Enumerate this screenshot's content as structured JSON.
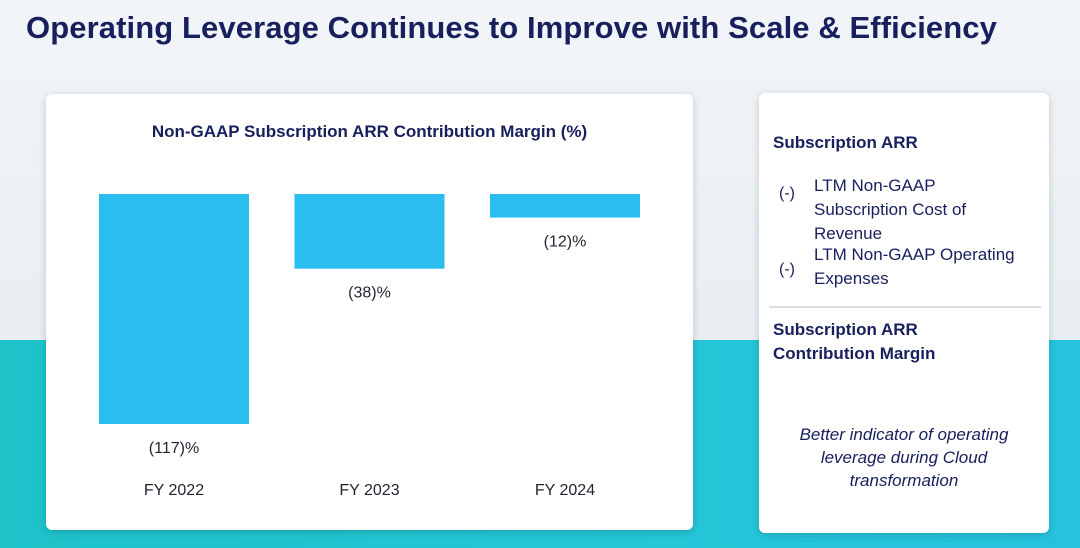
{
  "page": {
    "title": "Operating Leverage Continues to Improve with Scale & Efficiency"
  },
  "chart_data": {
    "type": "bar",
    "title": "Non-GAAP Subscription ARR Contribution Margin (%)",
    "categories": [
      "FY 2022",
      "FY 2023",
      "FY 2024"
    ],
    "values": [
      -117,
      -38,
      -12
    ],
    "value_labels": [
      "(117)%",
      "(38)%",
      "(12)%"
    ],
    "ylim": [
      -117,
      0
    ],
    "xlabel": "",
    "ylabel": "",
    "grid": false,
    "bar_color": "#29bdf0"
  },
  "side_panel": {
    "heading1": "Subscription ARR",
    "items": [
      {
        "prefix": "(-)",
        "text": "LTM Non-GAAP Subscription Cost of Revenue"
      },
      {
        "prefix": "(-)",
        "text": "LTM Non-GAAP Operating Expenses"
      }
    ],
    "heading2": "Subscription ARR Contribution Margin",
    "note": "Better indicator of operating leverage during Cloud transformation"
  },
  "colors": {
    "navy": "#171f5c",
    "bar": "#29bdf0",
    "band": "#1dc3c9"
  }
}
